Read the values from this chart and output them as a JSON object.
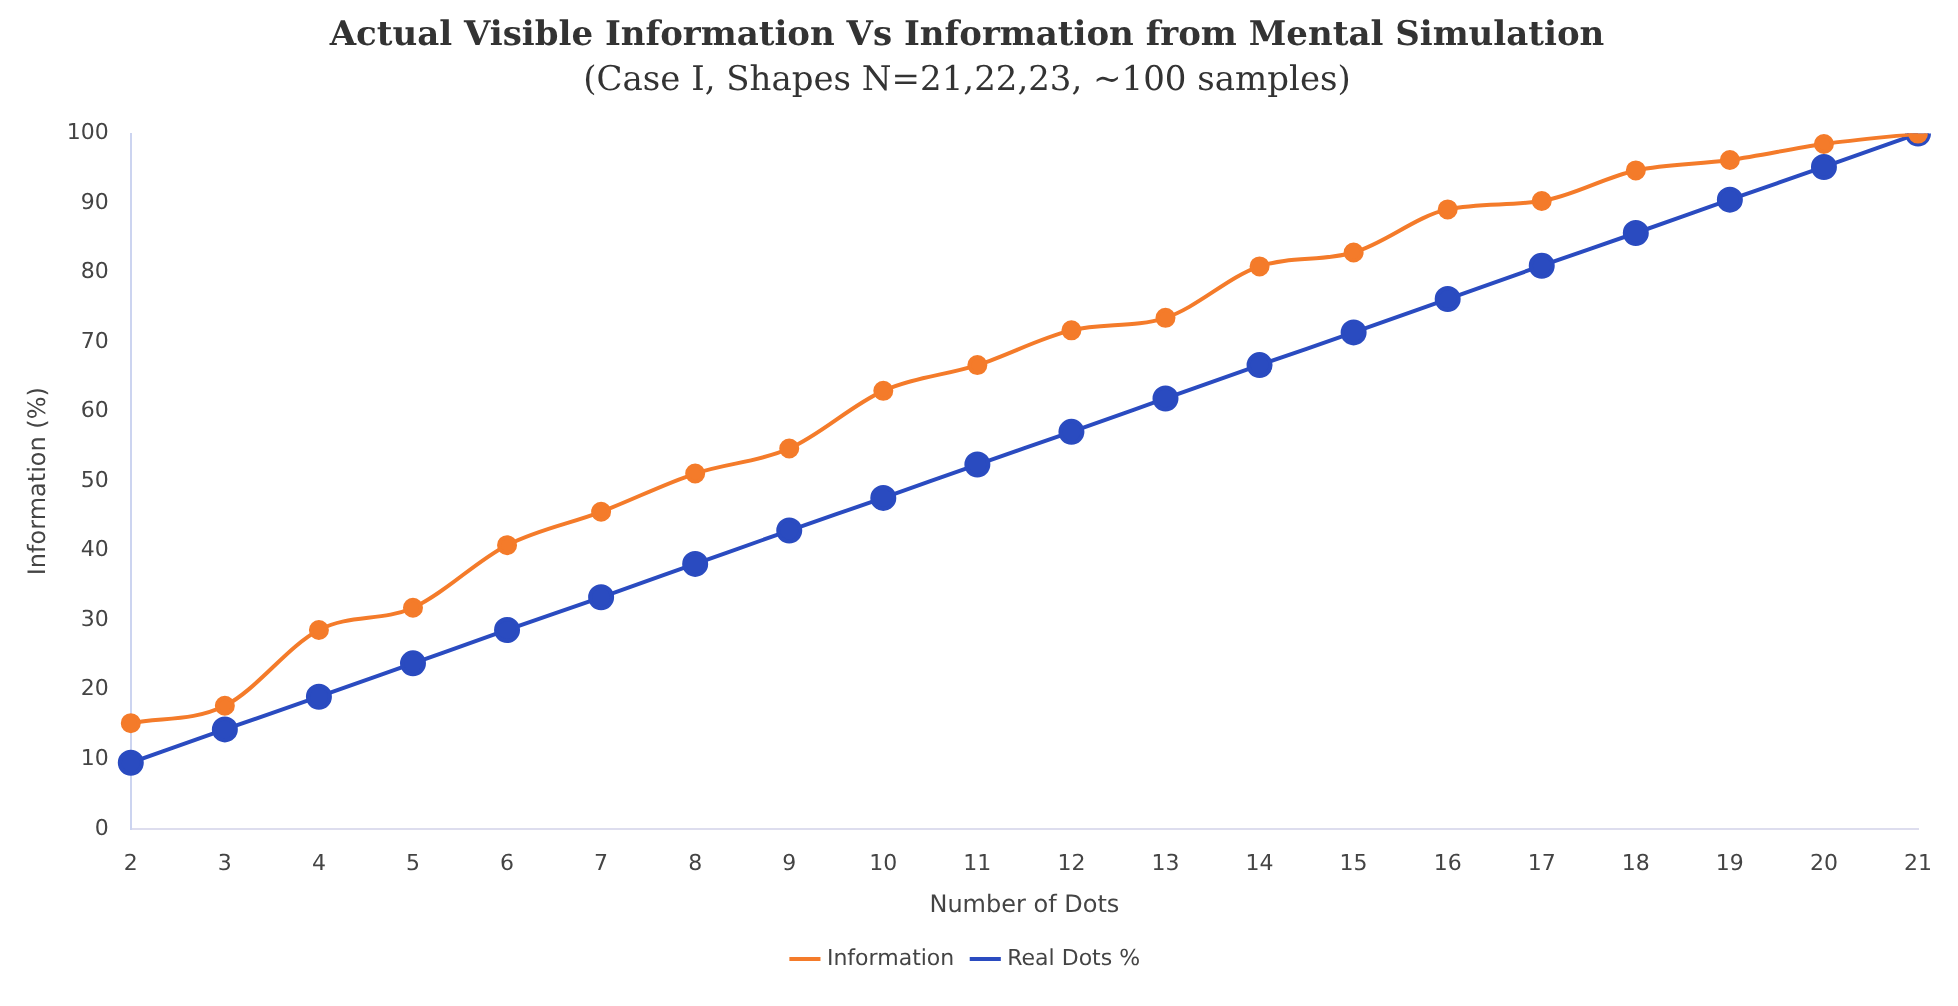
{
  "chart_data": {
    "type": "line",
    "title": "Actual Visible Information Vs Information from Mental Simulation",
    "subtitle": "(Case I, Shapes N=21,22,23, ~100 samples)",
    "xlabel": "Number of Dots",
    "ylabel": "Information (%)",
    "categories": [
      "2",
      "3",
      "4",
      "5",
      "6",
      "7",
      "8",
      "9",
      "10",
      "11",
      "12",
      "13",
      "14",
      "15",
      "16",
      "17",
      "18",
      "19",
      "20",
      "21"
    ],
    "series": [
      {
        "name": "Information",
        "color": "#f47b2a",
        "values": [
          15.2,
          17.7,
          28.6,
          31.8,
          40.8,
          45.6,
          51.1,
          54.7,
          63.0,
          66.7,
          71.7,
          73.5,
          80.9,
          82.9,
          89.1,
          90.3,
          94.7,
          96.2,
          98.5,
          100
        ]
      },
      {
        "name": "Real Dots %",
        "color": "#2a4bc0",
        "values": [
          9.5,
          14.3,
          19.0,
          23.8,
          28.6,
          33.3,
          38.1,
          42.9,
          47.6,
          52.4,
          57.1,
          61.9,
          66.7,
          71.4,
          76.2,
          81.0,
          85.7,
          90.5,
          95.2,
          100
        ]
      }
    ],
    "ylim": [
      0,
      100
    ],
    "yticks": [
      0,
      10,
      20,
      30,
      40,
      50,
      60,
      70,
      80,
      90,
      100
    ],
    "grid": false,
    "legend": "bottom",
    "marker": "circle"
  }
}
